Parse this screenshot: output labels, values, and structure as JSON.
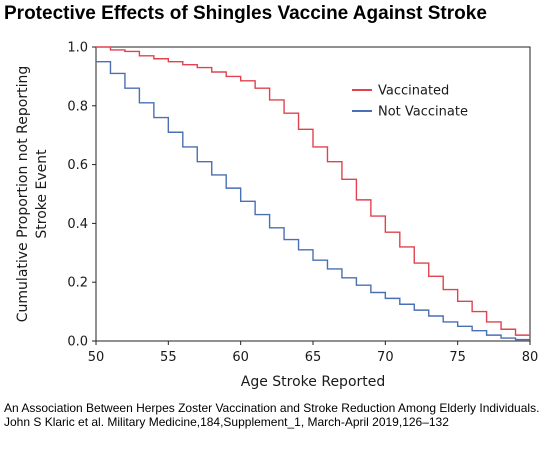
{
  "title": "Protective Effects of Shingles Vaccine Against Stroke",
  "caption": "An Association Between Herpes Zoster Vaccination and Stroke Reduction Among Elderly Individuals. John S Klaric et al. Military Medicine,184,Supplement_1, March-April 2019,126–132",
  "chart_data": {
    "type": "line",
    "step": true,
    "xlabel": "Age Stroke Reported",
    "ylabel_lines": [
      "Cumulative Proportion not Reporting",
      "Stroke Event"
    ],
    "xlim": [
      50,
      80
    ],
    "ylim": [
      0,
      1
    ],
    "xticks": [
      50,
      55,
      60,
      65,
      70,
      75,
      80
    ],
    "yticks": [
      0.0,
      0.2,
      0.4,
      0.6,
      0.8,
      1.0
    ],
    "ytick_labels": [
      "0.0",
      "0.2",
      "0.4",
      "0.6",
      "0.8",
      "1.0"
    ],
    "grid": false,
    "legend_position": "top-right",
    "series": [
      {
        "name": "Vaccinated",
        "color": "#e0434f",
        "x": [
          50,
          51,
          52,
          53,
          54,
          55,
          56,
          57,
          58,
          59,
          60,
          61,
          62,
          63,
          64,
          65,
          66,
          67,
          68,
          69,
          70,
          71,
          72,
          73,
          74,
          75,
          76,
          77,
          78,
          79
        ],
        "y": [
          1.0,
          0.99,
          0.985,
          0.97,
          0.96,
          0.95,
          0.94,
          0.93,
          0.915,
          0.9,
          0.885,
          0.86,
          0.82,
          0.775,
          0.72,
          0.66,
          0.61,
          0.55,
          0.48,
          0.425,
          0.37,
          0.32,
          0.265,
          0.22,
          0.175,
          0.135,
          0.1,
          0.065,
          0.04,
          0.02
        ]
      },
      {
        "name": "Not Vaccinate",
        "color": "#4a6fb5",
        "x": [
          50,
          51,
          52,
          53,
          54,
          55,
          56,
          57,
          58,
          59,
          60,
          61,
          62,
          63,
          64,
          65,
          66,
          67,
          68,
          69,
          70,
          71,
          72,
          73,
          74,
          75,
          76,
          77,
          78,
          79
        ],
        "y": [
          0.95,
          0.91,
          0.86,
          0.81,
          0.76,
          0.71,
          0.66,
          0.61,
          0.565,
          0.52,
          0.475,
          0.43,
          0.385,
          0.345,
          0.31,
          0.275,
          0.245,
          0.215,
          0.19,
          0.165,
          0.145,
          0.125,
          0.105,
          0.085,
          0.065,
          0.05,
          0.035,
          0.02,
          0.01,
          0.005
        ]
      }
    ]
  }
}
